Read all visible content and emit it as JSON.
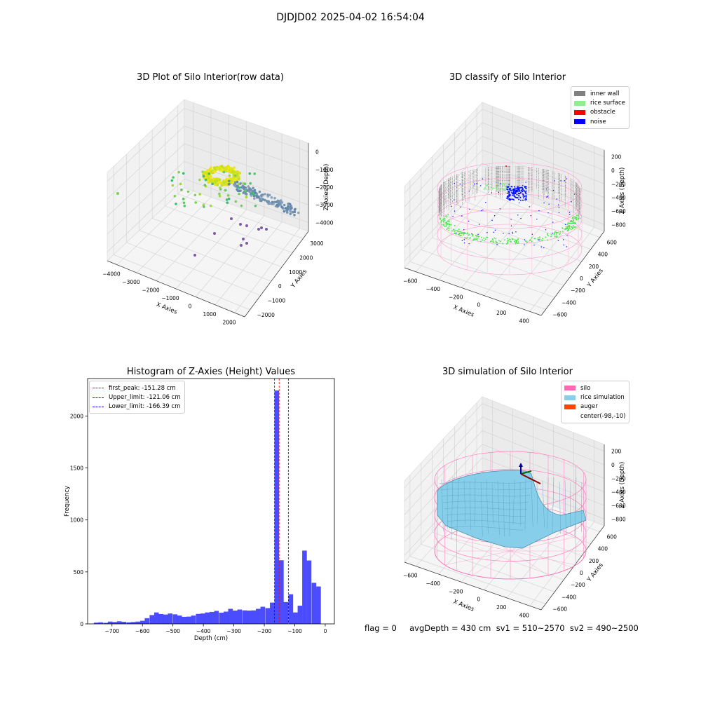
{
  "figure": {
    "suptitle": "DJDJD02 2025-04-02 16:54:04",
    "footer": "flag = 0     avgDepth = 430 cm  sv1 = 510~2570  sv2 = 490~2500"
  },
  "panels": {
    "raw": {
      "title": "3D Plot of Silo Interior(row data)",
      "xlabel": "X Axies",
      "ylabel": "Y Axies",
      "zlabel": "Z Axies (Depth)",
      "xticks": [
        "−4000",
        "−3000",
        "−2000",
        "−1000",
        "0",
        "1000",
        "2000"
      ],
      "yticks": [
        "−2000",
        "−1000",
        "0",
        "1000",
        "2000",
        "3000"
      ],
      "zticks": [
        "0",
        "−1000",
        "−2000",
        "−3000",
        "−4000"
      ]
    },
    "classify": {
      "title": "3D classify of Silo Interior",
      "xlabel": "X Axies",
      "ylabel": "Y Axies",
      "zlabel": "Z Axies (Depth)",
      "xticks": [
        "−600",
        "−400",
        "−200",
        "0",
        "200",
        "400"
      ],
      "yticks": [
        "−600",
        "−400",
        "−200",
        "0",
        "200",
        "400",
        "600"
      ],
      "zticks": [
        "200",
        "0",
        "−200",
        "−400",
        "−600",
        "−800"
      ],
      "legend": [
        {
          "label": "inner wall",
          "color": "#808080"
        },
        {
          "label": "rice surface",
          "color": "#90ee90"
        },
        {
          "label": "obstacle",
          "color": "#ff0000"
        },
        {
          "label": "noise",
          "color": "#0000ff"
        }
      ]
    },
    "simulation": {
      "title": "3D simulation of Silo Interior",
      "xlabel": "X Axies",
      "ylabel": "Y Axies",
      "zlabel": "Z Axies (Depth)",
      "xticks": [
        "−600",
        "−400",
        "−200",
        "0",
        "200",
        "400"
      ],
      "yticks": [
        "−600",
        "−400",
        "−200",
        "0",
        "200",
        "400",
        "600"
      ],
      "zticks": [
        "200",
        "0",
        "−200",
        "−400",
        "−600",
        "−800"
      ],
      "legend": [
        {
          "label": "silo",
          "color": "#ff69b4"
        },
        {
          "label": "rice simulation",
          "color": "#87ceeb"
        },
        {
          "label": "auger",
          "color": "#ff4500"
        },
        {
          "label": "center(-98,-10)",
          "color": ""
        }
      ]
    }
  },
  "chart_data": {
    "type": "bar",
    "title": "Histogram of Z-Axies (Height) Values",
    "xlabel": "Depth (cm)",
    "ylabel": "Frequency",
    "xlim": [
      -780,
      30
    ],
    "ylim": [
      0,
      2360
    ],
    "xticks": [
      -700,
      -600,
      -500,
      -400,
      -300,
      -200,
      -100,
      0
    ],
    "yticks": [
      0,
      500,
      1000,
      1500,
      2000
    ],
    "bar_color": "#0000ff",
    "bin_width": 15.2,
    "bins": [
      {
        "x": -752,
        "count": 12
      },
      {
        "x": -737,
        "count": 15
      },
      {
        "x": -721,
        "count": 10
      },
      {
        "x": -706,
        "count": 22
      },
      {
        "x": -691,
        "count": 18
      },
      {
        "x": -676,
        "count": 25
      },
      {
        "x": -661,
        "count": 20
      },
      {
        "x": -645,
        "count": 15
      },
      {
        "x": -630,
        "count": 18
      },
      {
        "x": -615,
        "count": 22
      },
      {
        "x": -600,
        "count": 30
      },
      {
        "x": -585,
        "count": 55
      },
      {
        "x": -569,
        "count": 85
      },
      {
        "x": -554,
        "count": 110
      },
      {
        "x": -539,
        "count": 95
      },
      {
        "x": -524,
        "count": 90
      },
      {
        "x": -509,
        "count": 100
      },
      {
        "x": -493,
        "count": 92
      },
      {
        "x": -478,
        "count": 80
      },
      {
        "x": -463,
        "count": 68
      },
      {
        "x": -448,
        "count": 70
      },
      {
        "x": -433,
        "count": 80
      },
      {
        "x": -417,
        "count": 96
      },
      {
        "x": -402,
        "count": 100
      },
      {
        "x": -387,
        "count": 110
      },
      {
        "x": -372,
        "count": 115
      },
      {
        "x": -357,
        "count": 125
      },
      {
        "x": -341,
        "count": 108
      },
      {
        "x": -326,
        "count": 118
      },
      {
        "x": -311,
        "count": 145
      },
      {
        "x": -296,
        "count": 128
      },
      {
        "x": -281,
        "count": 138
      },
      {
        "x": -265,
        "count": 130
      },
      {
        "x": -250,
        "count": 128
      },
      {
        "x": -235,
        "count": 130
      },
      {
        "x": -220,
        "count": 145
      },
      {
        "x": -205,
        "count": 165
      },
      {
        "x": -189,
        "count": 152
      },
      {
        "x": -174,
        "count": 205
      },
      {
        "x": -159,
        "count": 2245
      },
      {
        "x": -144,
        "count": 612
      },
      {
        "x": -129,
        "count": 210
      },
      {
        "x": -113,
        "count": 285
      },
      {
        "x": -98,
        "count": 110
      },
      {
        "x": -83,
        "count": 175
      },
      {
        "x": -68,
        "count": 705
      },
      {
        "x": -53,
        "count": 610
      },
      {
        "x": -37,
        "count": 395
      },
      {
        "x": -22,
        "count": 360
      }
    ],
    "vlines": [
      {
        "label": "first_peak: -151.28 cm",
        "x": -151.28,
        "color": "#ff0000"
      },
      {
        "label": "Upper_limit: -121.06 cm",
        "x": -121.06,
        "color": "#0000ff"
      },
      {
        "label": "Lower_limit: -166.39 cm",
        "x": -166.39,
        "color": "#0000ff"
      }
    ]
  }
}
